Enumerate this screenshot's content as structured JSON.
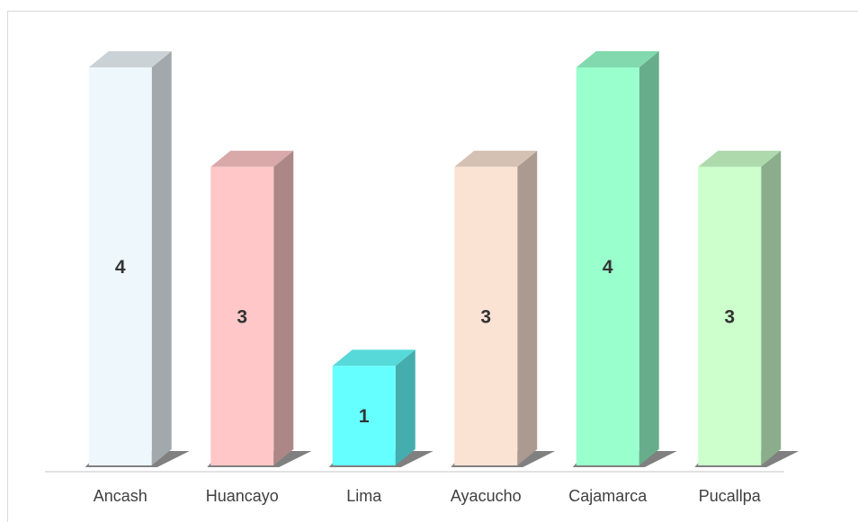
{
  "chart_data": {
    "type": "bar3d",
    "categories": [
      "Ancash",
      "Huancayo",
      "Lima",
      "Ayacucho",
      "Cajamarca",
      "Pucallpa"
    ],
    "values": [
      4,
      3,
      1,
      3,
      4,
      3
    ],
    "colors": [
      "#eef7fb",
      "#ffc7c7",
      "#66ffff",
      "#fbe3d4",
      "#99ffcc",
      "#ccffcc"
    ],
    "ylim": [
      0,
      4
    ]
  }
}
